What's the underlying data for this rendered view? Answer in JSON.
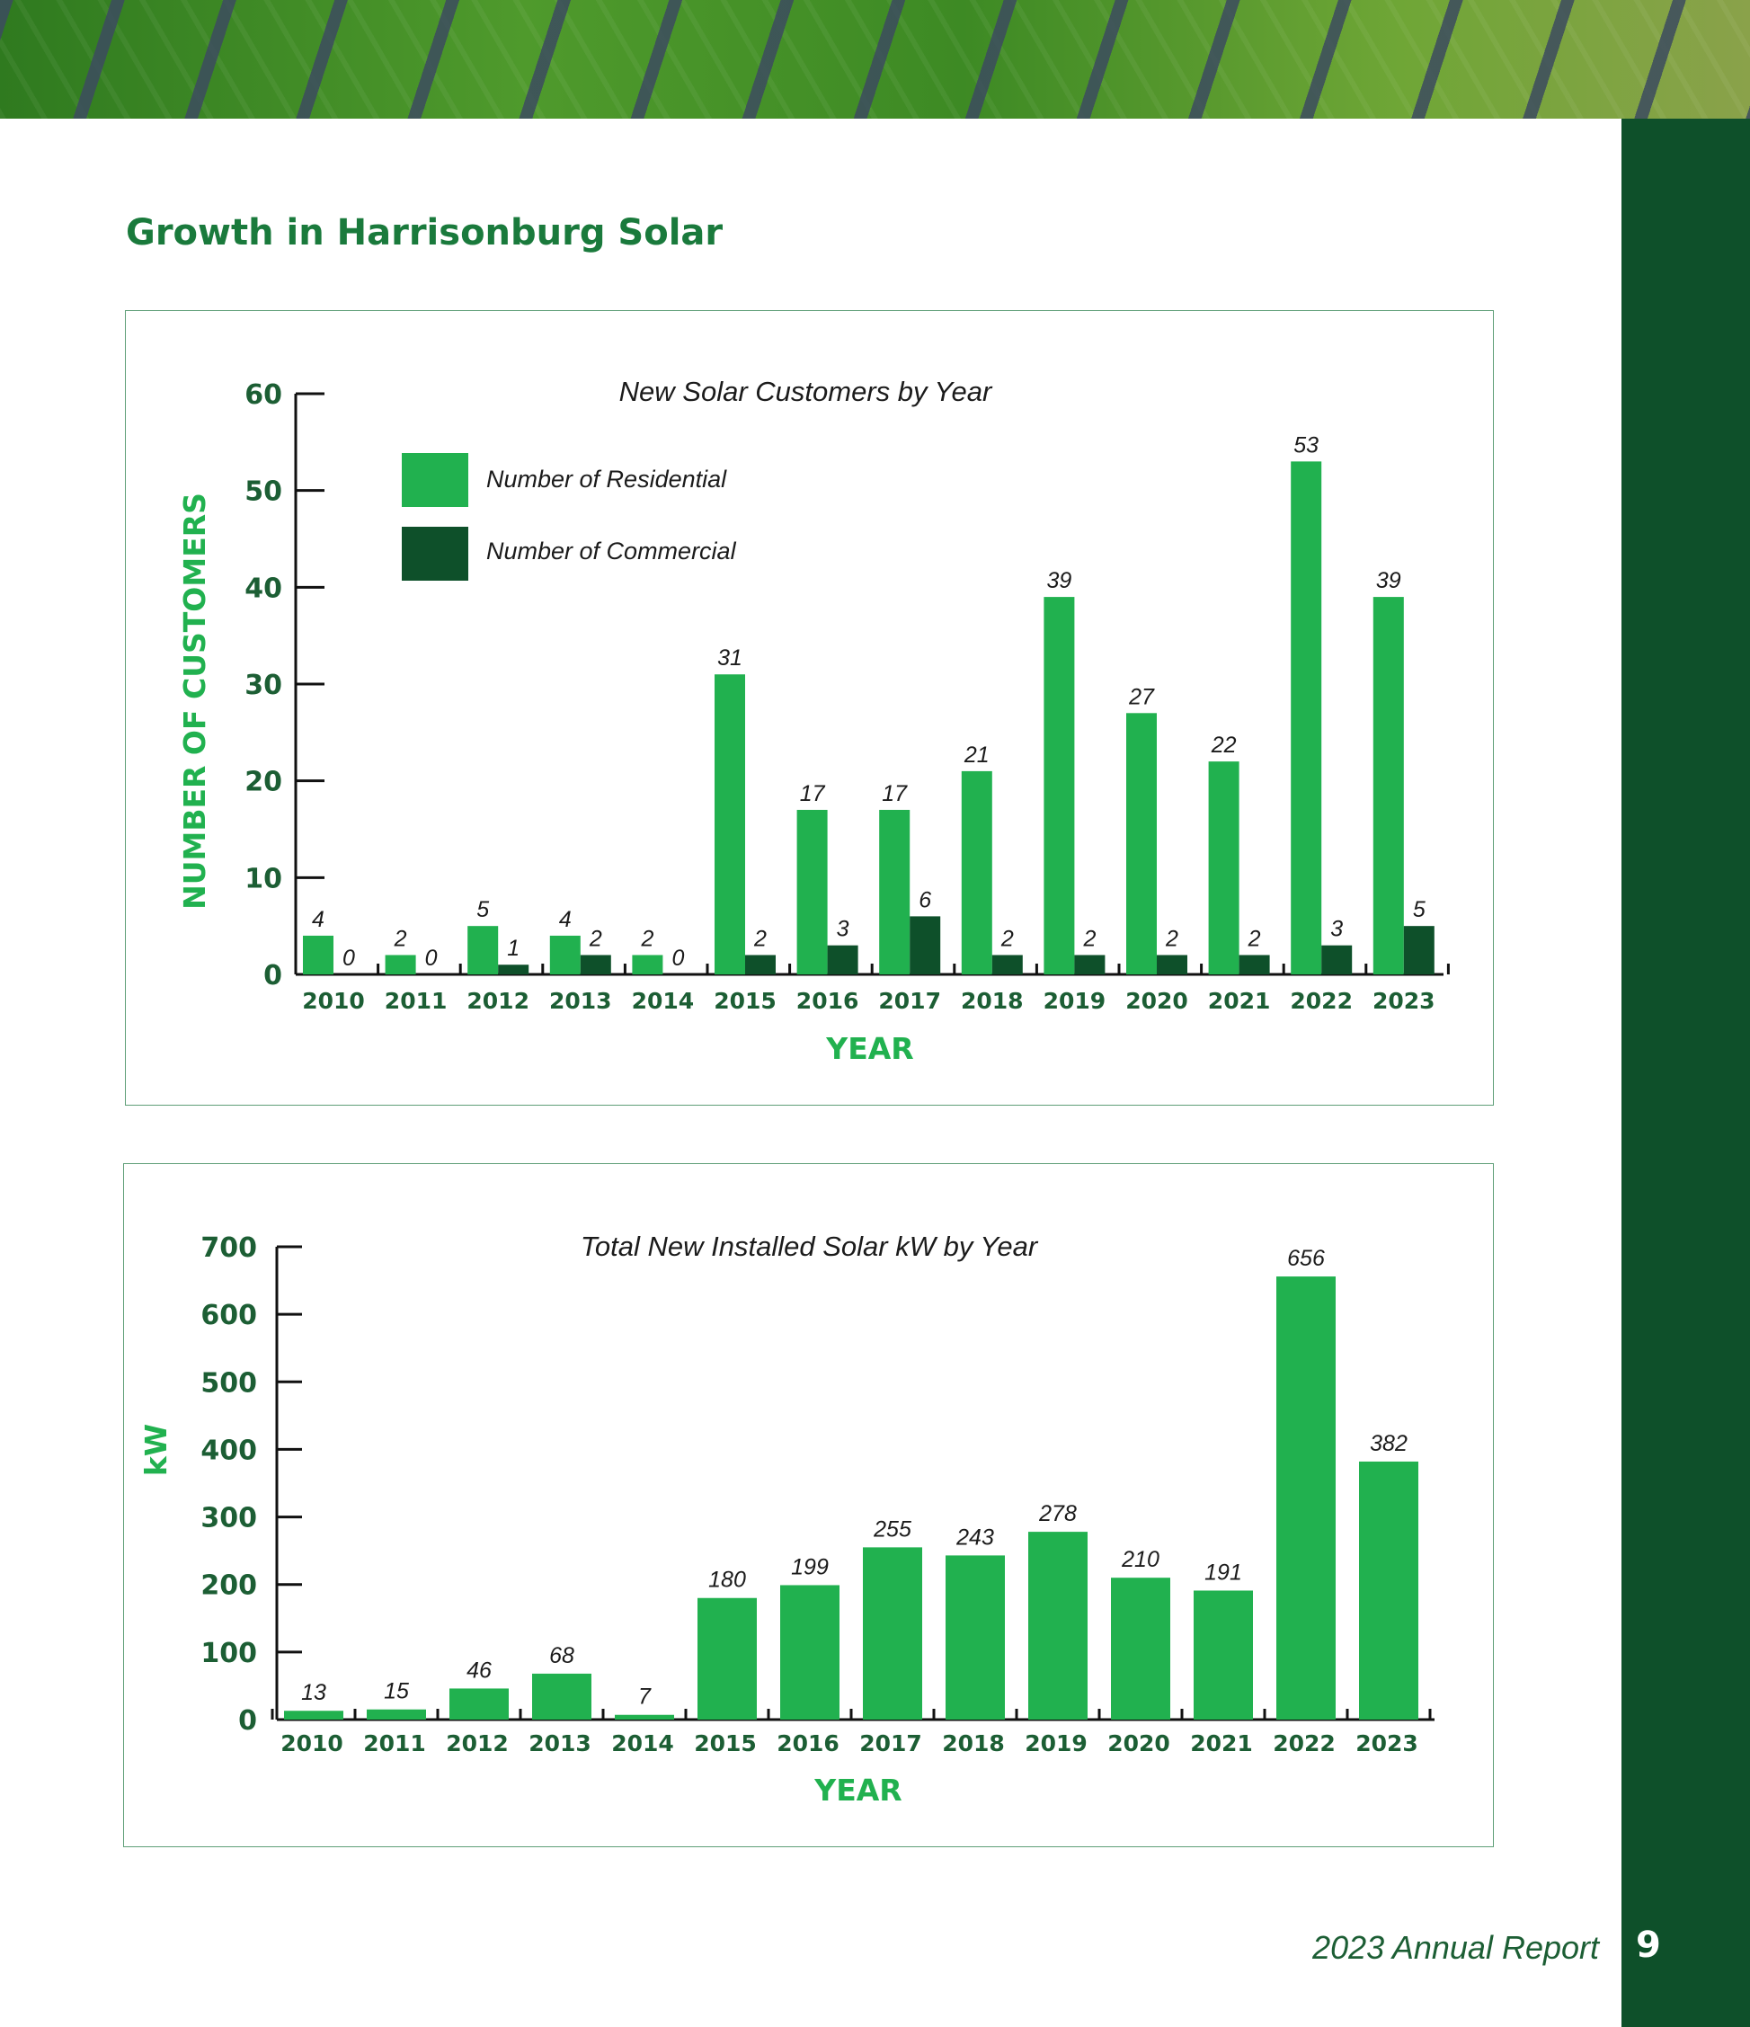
{
  "page": {
    "heading": "Growth in Harrisonburg Solar",
    "footer": "2023 Annual Report",
    "page_number": "9"
  },
  "colors": {
    "residential": "#21b14f",
    "commercial": "#0e502a",
    "axis": "#111111",
    "label_dark": "#1c5e34",
    "sidebar": "#0e502a"
  },
  "chart_data": [
    {
      "type": "bar",
      "title": "New Solar Customers by Year",
      "xlabel": "YEAR",
      "ylabel": "NUMBER OF CUSTOMERS",
      "ylim": [
        0,
        60
      ],
      "yticks": [
        0,
        10,
        20,
        30,
        40,
        50,
        60
      ],
      "categories": [
        "2010",
        "2011",
        "2012",
        "2013",
        "2014",
        "2015",
        "2016",
        "2017",
        "2018",
        "2019",
        "2020",
        "2021",
        "2022",
        "2023"
      ],
      "series": [
        {
          "name": "Number of Residential",
          "values": [
            4,
            2,
            5,
            4,
            2,
            31,
            17,
            17,
            21,
            39,
            27,
            22,
            53,
            39
          ]
        },
        {
          "name": "Number of Commercial",
          "values": [
            0,
            0,
            1,
            2,
            0,
            2,
            3,
            6,
            2,
            2,
            2,
            2,
            3,
            5
          ]
        }
      ],
      "legend": "top-left",
      "grid": false
    },
    {
      "type": "bar",
      "title": "Total New Installed Solar kW by Year",
      "xlabel": "YEAR",
      "ylabel": "kW",
      "ylim": [
        0,
        700
      ],
      "yticks": [
        0,
        100,
        200,
        300,
        400,
        500,
        600,
        700
      ],
      "categories": [
        "2010",
        "2011",
        "2012",
        "2013",
        "2014",
        "2015",
        "2016",
        "2017",
        "2018",
        "2019",
        "2020",
        "2021",
        "2022",
        "2023"
      ],
      "values": [
        13,
        15,
        46,
        68,
        7,
        180,
        199,
        255,
        243,
        278,
        210,
        191,
        656,
        382
      ],
      "grid": false
    }
  ]
}
